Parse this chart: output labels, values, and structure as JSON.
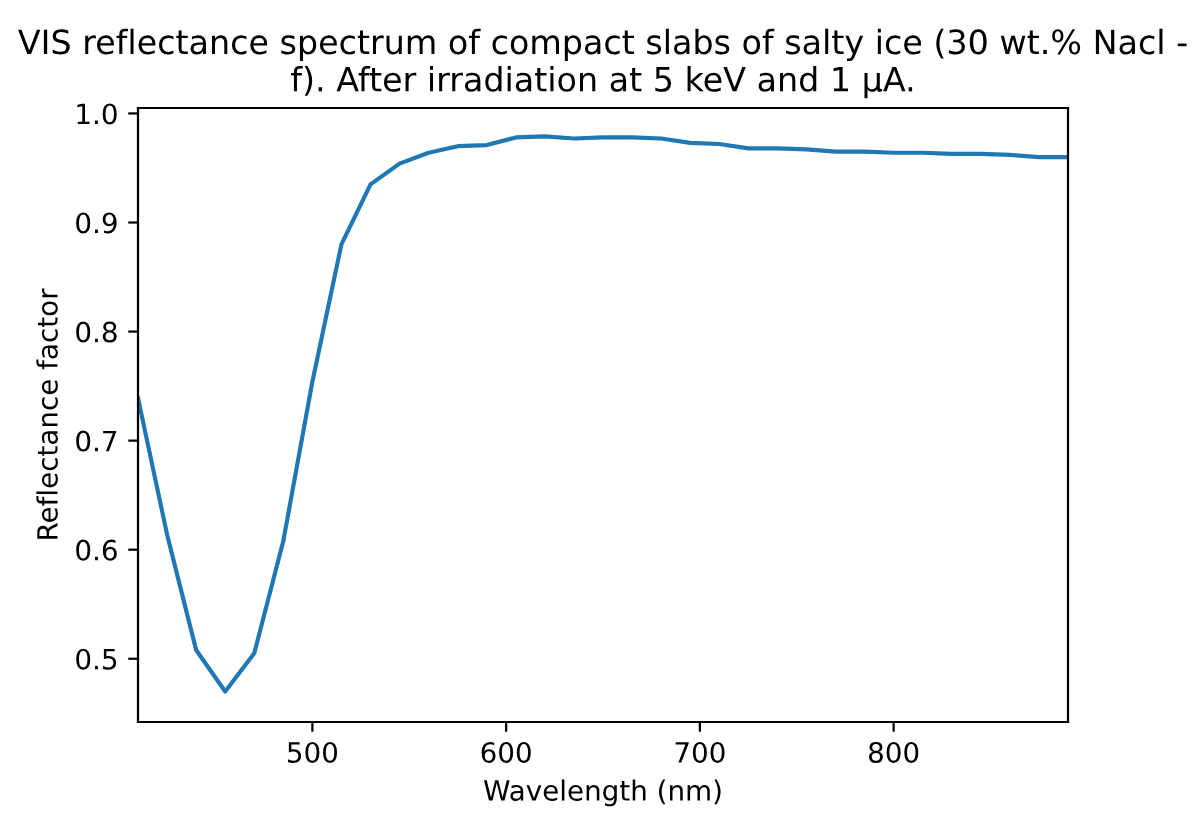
{
  "chart_data": {
    "type": "line",
    "title": "VIS reflectance spectrum of compact slabs of salty ice (30 wt.% Nacl -\nf). After irradiation at 5 keV and 1 µA.",
    "xlabel": "Wavelength (nm)",
    "ylabel": "Reflectance factor",
    "x": [
      410,
      425,
      440,
      455,
      470,
      485,
      500,
      515,
      530,
      545,
      560,
      575,
      590,
      605,
      620,
      635,
      650,
      665,
      680,
      695,
      710,
      725,
      740,
      755,
      770,
      785,
      800,
      815,
      830,
      845,
      860,
      875,
      890
    ],
    "series": [
      {
        "color": "#1f77b4",
        "values": [
          0.739,
          0.614,
          0.508,
          0.47,
          0.505,
          0.608,
          0.754,
          0.88,
          0.935,
          0.954,
          0.964,
          0.97,
          0.971,
          0.978,
          0.979,
          0.977,
          0.978,
          0.978,
          0.977,
          0.973,
          0.972,
          0.968,
          0.968,
          0.967,
          0.965,
          0.965,
          0.964,
          0.964,
          0.963,
          0.963,
          0.962,
          0.96,
          0.96
        ]
      }
    ],
    "xlim": [
      410,
      890
    ],
    "ylim": [
      0.442,
      1.005
    ],
    "xticks": [
      500,
      600,
      700,
      800
    ],
    "yticks": [
      0.5,
      0.6,
      0.7,
      0.8,
      0.9,
      {
        "value": 1.0,
        "label": "1.0"
      }
    ],
    "grid": false,
    "legend": false
  }
}
